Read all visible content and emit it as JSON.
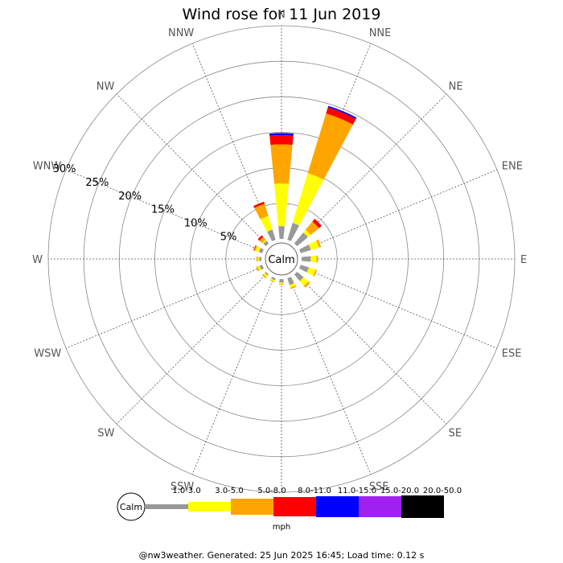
{
  "chart_data": {
    "type": "wind-rose",
    "title": "Wind rose for 11 Jun 2019",
    "directions": [
      "N",
      "NNE",
      "NE",
      "ENE",
      "E",
      "ESE",
      "SE",
      "SSE",
      "S",
      "SSW",
      "SW",
      "WSW",
      "W",
      "WNW",
      "NW",
      "NNW"
    ],
    "radial_ticks": [
      "5%",
      "10%",
      "15%",
      "20%",
      "25%",
      "30%"
    ],
    "radial_values": [
      5,
      10,
      15,
      20,
      25,
      30
    ],
    "radial_max": 30,
    "calm_label": "Calm",
    "speed_bins": [
      {
        "label": "1.0-3.0",
        "color": "#999999"
      },
      {
        "label": "3.0-5.0",
        "color": "#ffff00"
      },
      {
        "label": "5.0-8.0",
        "color": "#ffa500"
      },
      {
        "label": "8.0-11.0",
        "color": "#ff0000"
      },
      {
        "label": "11.0-15.0",
        "color": "#0000ff"
      },
      {
        "label": "15.0-20.0",
        "color": "#a020f0"
      },
      {
        "label": "20.0-50.0",
        "color": "#000000"
      }
    ],
    "unit_label": "mph",
    "series": [
      {
        "direction": "N",
        "values": [
          1.8,
          6.0,
          5.5,
          1.3,
          0.3,
          0,
          0
        ]
      },
      {
        "direction": "NNE",
        "values": [
          2.5,
          7.3,
          8.8,
          0.9,
          0.2,
          0,
          0
        ]
      },
      {
        "direction": "NE",
        "values": [
          2.0,
          0.5,
          1.5,
          0.5,
          0,
          0,
          0
        ]
      },
      {
        "direction": "ENE",
        "values": [
          1.5,
          1.2,
          0.3,
          0,
          0,
          0,
          0
        ]
      },
      {
        "direction": "E",
        "values": [
          1.3,
          0.8,
          0.2,
          0,
          0,
          0,
          0
        ]
      },
      {
        "direction": "ESE",
        "values": [
          1.2,
          1.0,
          0.2,
          0,
          0,
          0,
          0
        ]
      },
      {
        "direction": "SE",
        "values": [
          1.2,
          0.9,
          0.3,
          0,
          0,
          0,
          0
        ]
      },
      {
        "direction": "SSE",
        "values": [
          1.0,
          0.4,
          0.2,
          0,
          0,
          0,
          0
        ]
      },
      {
        "direction": "S",
        "values": [
          0.5,
          0.2,
          0.1,
          0,
          0,
          0,
          0
        ]
      },
      {
        "direction": "SSW",
        "values": [
          0.3,
          0.2,
          0.1,
          0,
          0,
          0,
          0
        ]
      },
      {
        "direction": "SW",
        "values": [
          0.2,
          0.3,
          0.2,
          0,
          0,
          0,
          0
        ]
      },
      {
        "direction": "WSW",
        "values": [
          0.4,
          0.3,
          0.2,
          0,
          0,
          0,
          0
        ]
      },
      {
        "direction": "W",
        "values": [
          0.3,
          0.2,
          0.2,
          0,
          0,
          0,
          0
        ]
      },
      {
        "direction": "WNW",
        "values": [
          0.5,
          0.5,
          0.2,
          0.1,
          0,
          0,
          0
        ]
      },
      {
        "direction": "NW",
        "values": [
          0.5,
          0.2,
          0.5,
          0.3,
          0,
          0,
          0
        ]
      },
      {
        "direction": "NNW",
        "values": [
          1.5,
          2.0,
          1.8,
          0.3,
          0,
          0,
          0
        ]
      }
    ]
  },
  "footer_text": "@nw3weather. Generated: 25 Jun 2025 16:45; Load time: 0.12 s"
}
